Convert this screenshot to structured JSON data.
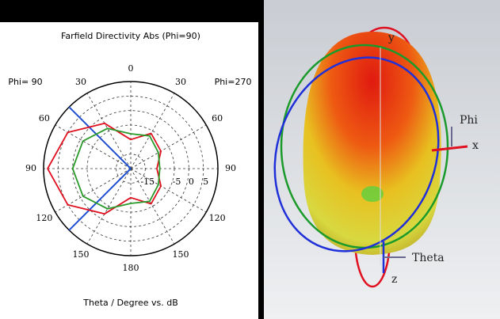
{
  "chart_data": {
    "type": "polar",
    "title": "Farfield Directivity Abs (Phi=90)",
    "left_label": "Phi= 90",
    "right_label": "Phi=270",
    "xlabel": "Theta / Degree vs. dB",
    "rlim": [
      -20,
      10
    ],
    "rticks": [
      -15,
      -5,
      0,
      5
    ],
    "thetaticks": [
      {
        "value": 0,
        "label": "0"
      },
      {
        "value": 30,
        "label": "30"
      },
      {
        "value": 60,
        "label": "60"
      },
      {
        "value": 90,
        "label": "90"
      },
      {
        "value": 120,
        "label": "120"
      },
      {
        "value": 150,
        "label": "150"
      },
      {
        "value": 180,
        "label": "180"
      },
      {
        "value": 210,
        "label": "150"
      },
      {
        "value": 240,
        "label": "120"
      },
      {
        "value": 270,
        "label": "90"
      },
      {
        "value": 300,
        "label": "60"
      },
      {
        "value": 330,
        "label": "30"
      }
    ],
    "series": [
      {
        "color": "#e01020",
        "theta": [
          0,
          30,
          60,
          90,
          120,
          150,
          180,
          210,
          240,
          270,
          300,
          330
        ],
        "r": [
          -10,
          -6,
          -8,
          -11,
          -8,
          -6,
          -10,
          -2,
          5,
          8.6,
          5,
          -2
        ]
      },
      {
        "color": "#2a9a2a",
        "theta": [
          0,
          30,
          60,
          90,
          120,
          150,
          180,
          210,
          240,
          270,
          300,
          330
        ],
        "r": [
          -8,
          -7,
          -9,
          -10,
          -9,
          -7,
          -8,
          -4,
          -1,
          0,
          -1,
          -4
        ]
      }
    ],
    "beam_angles": [
      315,
      225
    ],
    "beam_color": "#1f4fd0"
  },
  "figure3d": {
    "axis_labels": {
      "y": "y",
      "phi": "Phi",
      "x": "x",
      "theta": "Theta",
      "z": "z"
    }
  }
}
